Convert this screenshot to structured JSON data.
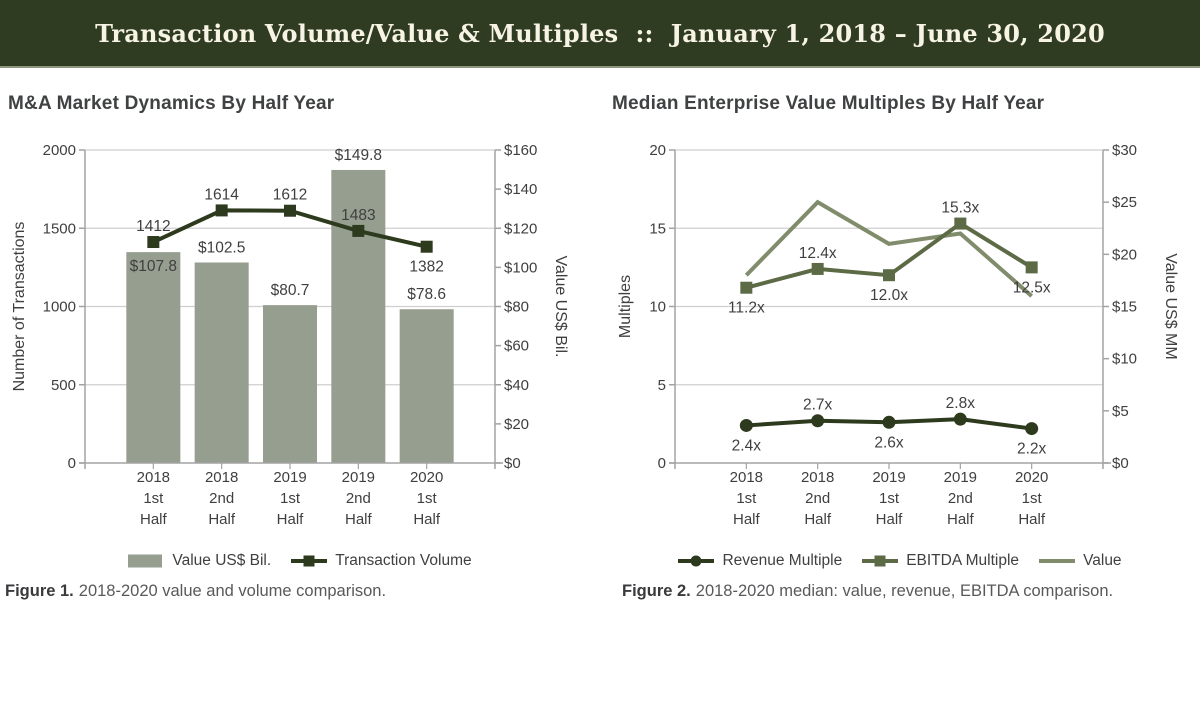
{
  "banner": {
    "title": "Transaction Volume/Value & Multiples  ::  January 1, 2018 – June 30, 2020",
    "bg_color": "#303c22",
    "text_color": "#f7f4e6"
  },
  "figure1": {
    "title": "M&A Market Dynamics By Half Year",
    "caption_label": "Figure 1.",
    "caption_text": "2018-2020 value and volume comparison."
  },
  "figure2": {
    "title": "Median Enterprise Value Multiples By Half Year",
    "caption_label": "Figure 2.",
    "caption_text": "2018-2020 median: value, revenue, EBITDA comparison."
  },
  "colors": {
    "bar": "#969e90",
    "dark_green": "#2d3a1d",
    "ebitda_green": "#5c6a45",
    "value_grayed_green": "#808c6c",
    "grid": "#cfcfcf",
    "axis": "#a3a3a3",
    "text": "#3f3f3f"
  },
  "chart_data": [
    {
      "id": "figure1",
      "type": "bar",
      "title": "M&A Market Dynamics By Half Year",
      "categories": [
        [
          "2018",
          "1st",
          "Half"
        ],
        [
          "2018",
          "2nd",
          "Half"
        ],
        [
          "2019",
          "1st",
          "Half"
        ],
        [
          "2019",
          "2nd",
          "Half"
        ],
        [
          "2020",
          "1st",
          "Half"
        ]
      ],
      "series": [
        {
          "name": "Value US$ Bil.",
          "type": "bar",
          "axis": "right",
          "values": [
            107.8,
            102.5,
            80.7,
            149.8,
            78.6
          ],
          "labels": [
            "$107.8",
            "$102.5",
            "$80.7",
            "$149.8",
            "$78.6"
          ],
          "color": "#969e90"
        },
        {
          "name": "Transaction Volume",
          "type": "line",
          "axis": "left",
          "marker": "square",
          "values": [
            1412,
            1614,
            1612,
            1483,
            1382
          ],
          "labels": [
            "1412",
            "1614",
            "1612",
            "1483",
            "1382"
          ],
          "color": "#2d3a1d"
        }
      ],
      "left_axis": {
        "title": "Number of Transactions",
        "min": 0,
        "max": 2000,
        "step": 500,
        "ticks": [
          "0",
          "500",
          "1000",
          "1500",
          "2000"
        ]
      },
      "right_axis": {
        "title": "Value US$ Bil.",
        "min": 0,
        "max": 160,
        "step": 20,
        "ticks": [
          "$0",
          "$20",
          "$40",
          "$60",
          "$80",
          "$100",
          "$120",
          "$140",
          "$160"
        ]
      },
      "grid": true,
      "legend_position": "bottom"
    },
    {
      "id": "figure2",
      "type": "line",
      "title": "Median Enterprise Value Multiples By Half Year",
      "categories": [
        [
          "2018",
          "1st",
          "Half"
        ],
        [
          "2018",
          "2nd",
          "Half"
        ],
        [
          "2019",
          "1st",
          "Half"
        ],
        [
          "2019",
          "2nd",
          "Half"
        ],
        [
          "2020",
          "1st",
          "Half"
        ]
      ],
      "series": [
        {
          "name": "Value",
          "type": "line",
          "axis": "right",
          "marker": "none",
          "values": [
            18,
            25,
            21,
            22,
            16
          ],
          "labels": [],
          "color": "#808c6c"
        },
        {
          "name": "EBITDA Multiple",
          "type": "line",
          "axis": "left",
          "marker": "square",
          "values": [
            11.2,
            12.4,
            12.0,
            15.3,
            12.5
          ],
          "labels": [
            "11.2x",
            "12.4x",
            "12.0x",
            "15.3x",
            "12.5x"
          ],
          "color": "#5c6a45"
        },
        {
          "name": "Revenue Multiple",
          "type": "line",
          "axis": "left",
          "marker": "circle",
          "values": [
            2.4,
            2.7,
            2.6,
            2.8,
            2.2
          ],
          "labels": [
            "2.4x",
            "2.7x",
            "2.6x",
            "2.8x",
            "2.2x"
          ],
          "color": "#2d3a1d"
        }
      ],
      "left_axis": {
        "title": "Multiples",
        "min": 0,
        "max": 20,
        "step": 5,
        "ticks": [
          "0",
          "5",
          "10",
          "15",
          "20"
        ]
      },
      "right_axis": {
        "title": "Value US$ MM",
        "min": 0,
        "max": 30,
        "step": 5,
        "ticks": [
          "$0",
          "$5",
          "$10",
          "$15",
          "$20",
          "$25",
          "$30"
        ]
      },
      "grid": true,
      "legend_position": "bottom",
      "legend_order": [
        "Revenue Multiple",
        "EBITDA Multiple",
        "Value"
      ]
    }
  ]
}
